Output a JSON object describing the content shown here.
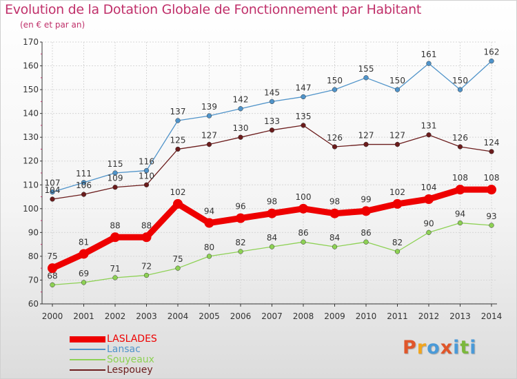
{
  "header": {
    "title": "Evolution de la Dotation Globale de Fonctionnement par Habitant",
    "subtitle": "(en € et par an)"
  },
  "logo": {
    "letters": [
      "P",
      "r",
      "o",
      "x",
      "i",
      "t",
      "i"
    ],
    "colors": [
      "#e0562a",
      "#f2a51e",
      "#4a9ad8",
      "#e0562a",
      "#4a9ad8",
      "#7bb83c",
      "#4a9ad8"
    ]
  },
  "colors": {
    "accent": "#c0306a",
    "axis": "#333333",
    "grid": "#d6d6d6",
    "label": "#333333"
  },
  "chart_data": {
    "type": "line",
    "title": "Evolution de la Dotation Globale de Fonctionnement par Habitant",
    "subtitle": "(en € et par an)",
    "x": [
      2000,
      2001,
      2002,
      2003,
      2004,
      2005,
      2006,
      2007,
      2008,
      2009,
      2010,
      2011,
      2012,
      2013,
      2014
    ],
    "ylim": [
      60,
      170
    ],
    "yticks": [
      60,
      70,
      80,
      90,
      100,
      110,
      120,
      130,
      140,
      150,
      160,
      170
    ],
    "grid": true,
    "legend_position": "bottom-left",
    "series": [
      {
        "name": "LASLADES",
        "color": "#ee0000",
        "emphasis": true,
        "values": [
          75,
          81,
          88,
          88,
          102,
          94,
          96,
          98,
          100,
          98,
          99,
          102,
          104,
          108,
          108
        ]
      },
      {
        "name": "Lansac",
        "color": "#4f93c9",
        "values": [
          107,
          111,
          115,
          116,
          137,
          139,
          142,
          145,
          147,
          150,
          155,
          150,
          161,
          150,
          162
        ]
      },
      {
        "name": "Souyeaux",
        "color": "#8dd154",
        "values": [
          68,
          69,
          71,
          72,
          75,
          80,
          82,
          84,
          86,
          84,
          86,
          82,
          90,
          94,
          93
        ]
      },
      {
        "name": "Lespouey",
        "color": "#6b1c1c",
        "values": [
          104,
          106,
          109,
          110,
          125,
          127,
          130,
          133,
          135,
          126,
          127,
          127,
          131,
          126,
          124
        ]
      }
    ]
  }
}
